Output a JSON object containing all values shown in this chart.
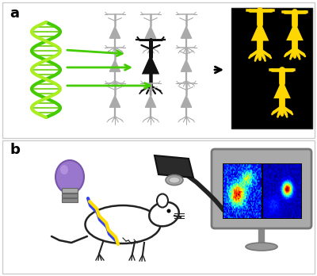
{
  "fig_width": 4.0,
  "fig_height": 3.48,
  "dpi": 100,
  "bg_color": "#ffffff",
  "panel_a_label": "a",
  "panel_b_label": "b",
  "yellow": "#FFD700",
  "green_dark": "#44CC00",
  "green_light": "#AAEE22",
  "gray_neuron": "#aaaaaa",
  "black_neuron": "#111111",
  "bulb_color": "#8877bb",
  "bulb_base": "#aaaaaa",
  "camera_body": "#333333",
  "camera_lens": "#888888",
  "monitor_frame": "#999999",
  "monitor_screen": "#111111",
  "cable_color": "#222222",
  "zigzag_blue": "#3344EE",
  "zigzag_yellow": "#FFDD00",
  "mouse_color": "#222222"
}
